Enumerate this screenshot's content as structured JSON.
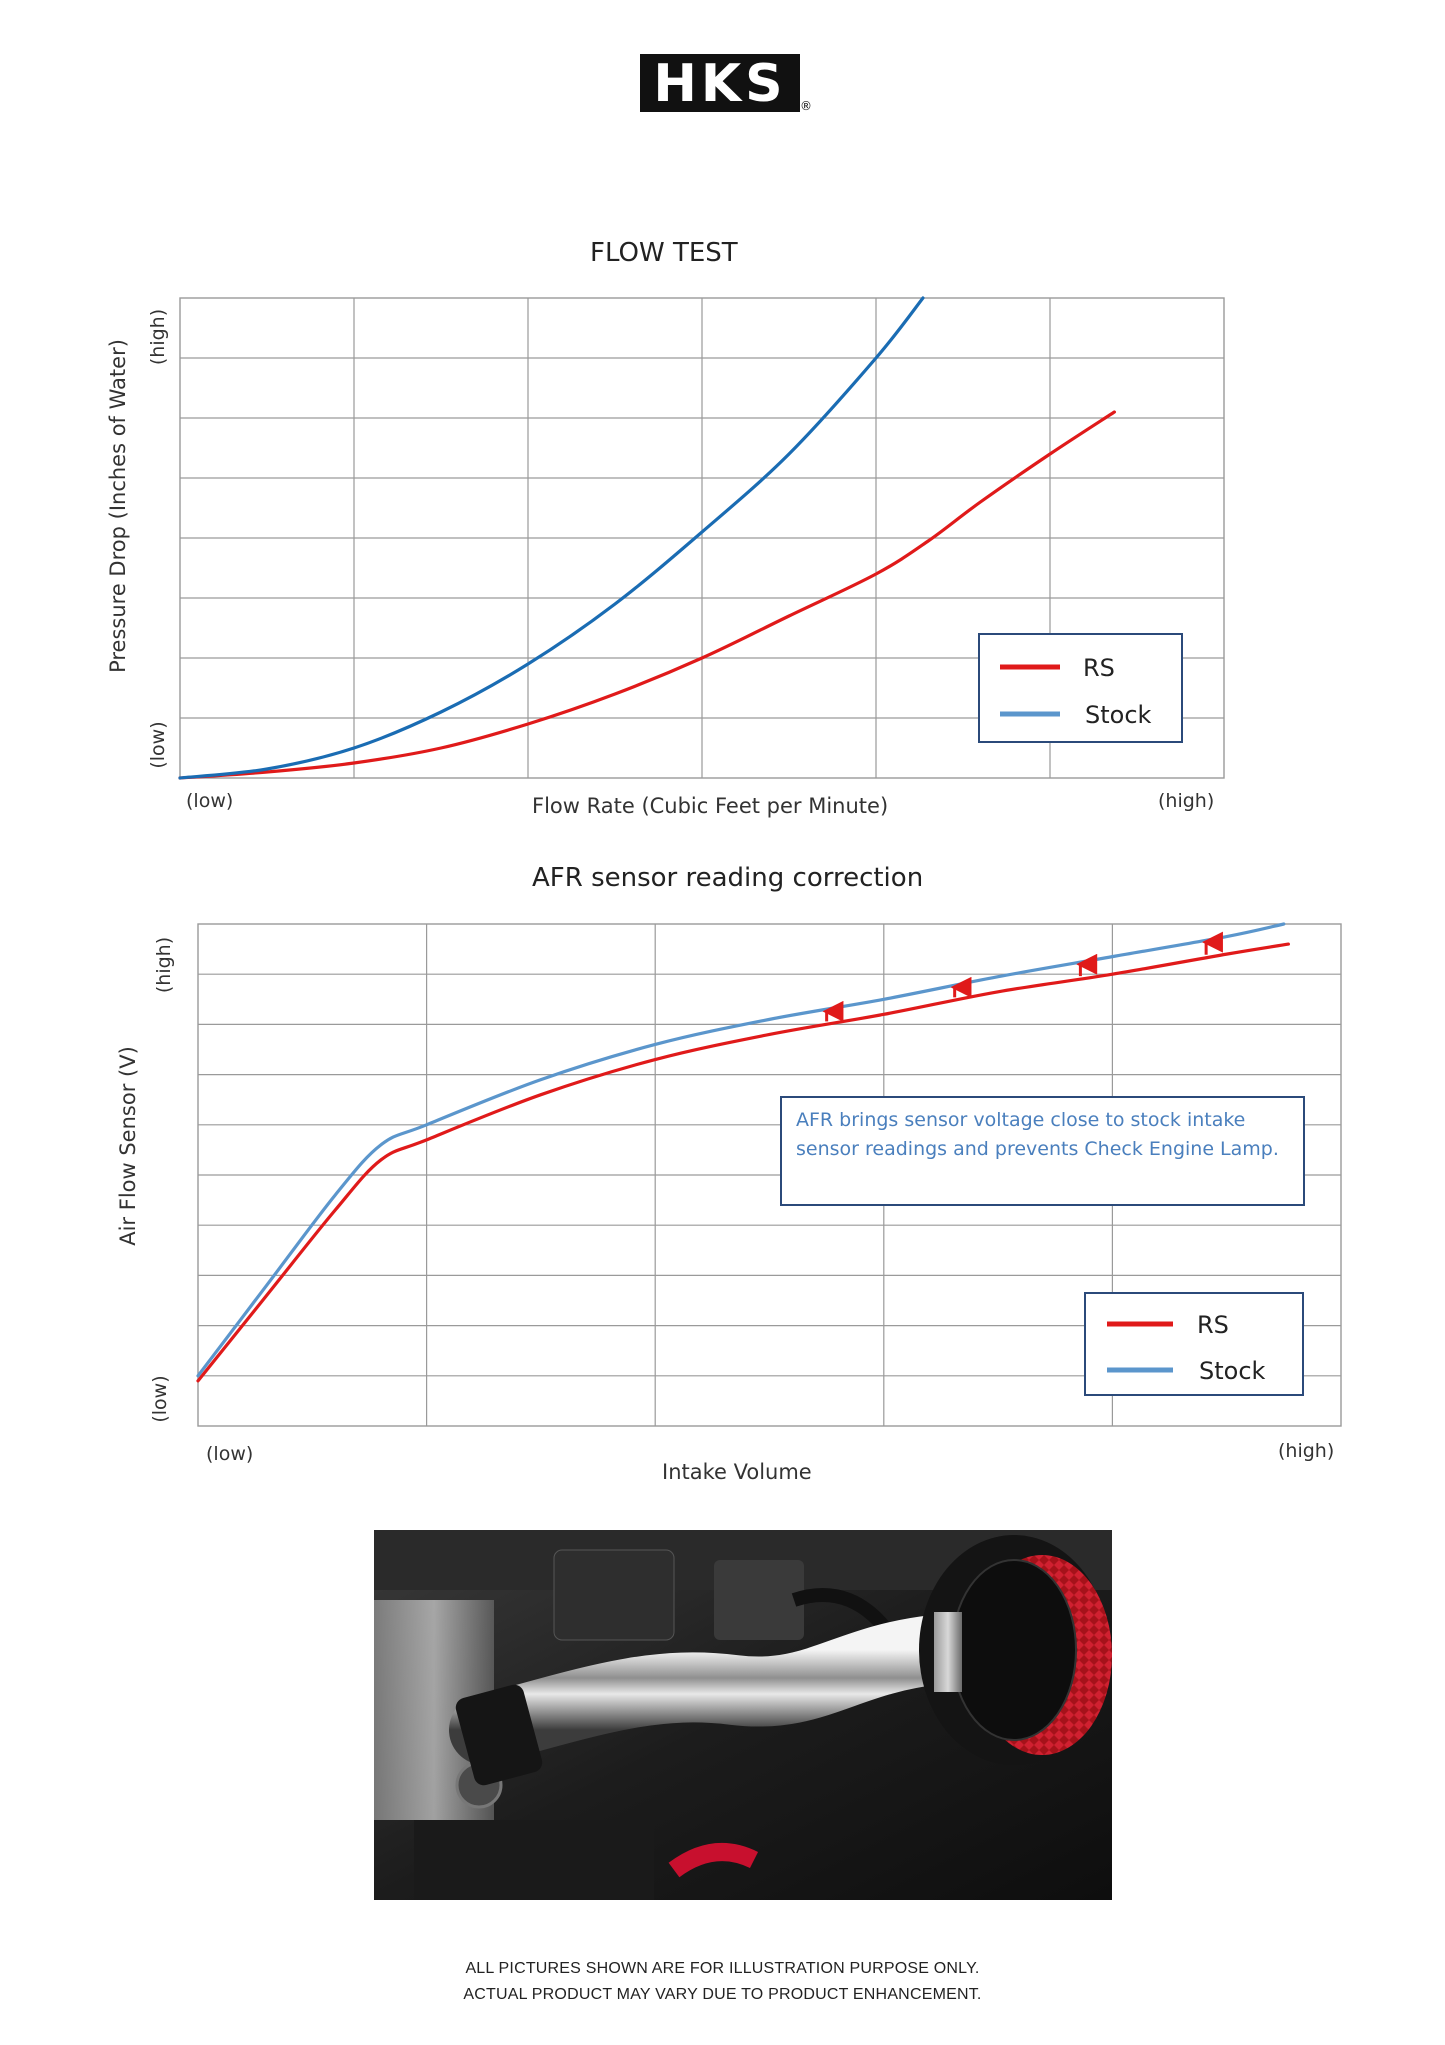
{
  "logo": {
    "text": "HKS",
    "registered": "®"
  },
  "chart_data": [
    {
      "type": "line",
      "title": "FLOW TEST",
      "xlabel": "Flow Rate (Cubic Feet per Minute)",
      "ylabel": "Pressure Drop (Inches of Water)",
      "x_low_label": "(low)",
      "x_high_label": "(high)",
      "y_low_label": "(low)",
      "y_high_label": "(high)",
      "xlim": [
        0,
        6
      ],
      "ylim": [
        0,
        8
      ],
      "grid": true,
      "legend_position": "bottom-right",
      "series": [
        {
          "name": "RS",
          "color": "#e01a1a",
          "points": [
            [
              0,
              0
            ],
            [
              0.5,
              0.1
            ],
            [
              1,
              0.25
            ],
            [
              1.5,
              0.5
            ],
            [
              2,
              0.9
            ],
            [
              2.5,
              1.4
            ],
            [
              3,
              2.0
            ],
            [
              3.5,
              2.7
            ],
            [
              4,
              3.4
            ],
            [
              4.3,
              3.95
            ],
            [
              4.6,
              4.6
            ],
            [
              5,
              5.4
            ],
            [
              5.37,
              6.1
            ]
          ]
        },
        {
          "name": "Stock",
          "color": "#1a6cb3",
          "points": [
            [
              0,
              0
            ],
            [
              0.5,
              0.15
            ],
            [
              1,
              0.5
            ],
            [
              1.5,
              1.1
            ],
            [
              2,
              1.9
            ],
            [
              2.5,
              2.9
            ],
            [
              3,
              4.1
            ],
            [
              3.5,
              5.4
            ],
            [
              4,
              7.0
            ],
            [
              4.27,
              8.0
            ]
          ]
        }
      ]
    },
    {
      "type": "line",
      "title": "AFR sensor reading correction",
      "xlabel": "Intake Volume",
      "ylabel": "Air Flow Sensor (V)",
      "x_low_label": "(low)",
      "x_high_label": "(high)",
      "y_low_label": "(low)",
      "y_high_label": "(high)",
      "xlim": [
        0,
        5
      ],
      "ylim": [
        0,
        10
      ],
      "grid": true,
      "legend_position": "bottom-right",
      "annotation": "AFR brings sensor voltage close to stock intake sensor readings and prevents Check Engine Lamp.",
      "arrows_x": [
        2.75,
        3.31,
        3.86,
        4.41
      ],
      "series": [
        {
          "name": "RS",
          "color": "#e01a1a",
          "points": [
            [
              0,
              0.9
            ],
            [
              0.3,
              2.6
            ],
            [
              0.6,
              4.3
            ],
            [
              0.8,
              5.3
            ],
            [
              1.0,
              5.7
            ],
            [
              1.5,
              6.6
            ],
            [
              2,
              7.3
            ],
            [
              2.5,
              7.8
            ],
            [
              3,
              8.2
            ],
            [
              3.5,
              8.65
            ],
            [
              4,
              9.0
            ],
            [
              4.5,
              9.4
            ],
            [
              4.77,
              9.6
            ]
          ]
        },
        {
          "name": "Stock",
          "color": "#5b96cc",
          "points": [
            [
              0,
              1.0
            ],
            [
              0.3,
              2.8
            ],
            [
              0.6,
              4.6
            ],
            [
              0.8,
              5.6
            ],
            [
              1.0,
              6.0
            ],
            [
              1.5,
              6.9
            ],
            [
              2,
              7.6
            ],
            [
              2.5,
              8.1
            ],
            [
              3,
              8.5
            ],
            [
              3.5,
              8.95
            ],
            [
              4,
              9.35
            ],
            [
              4.5,
              9.75
            ],
            [
              4.75,
              10.0
            ]
          ]
        }
      ]
    }
  ],
  "footer": {
    "line1": "ALL PICTURES SHOWN ARE FOR ILLUSTRATION PURPOSE ONLY.",
    "line2": "ACTUAL PRODUCT MAY VARY DUE TO PRODUCT ENHANCEMENT."
  }
}
